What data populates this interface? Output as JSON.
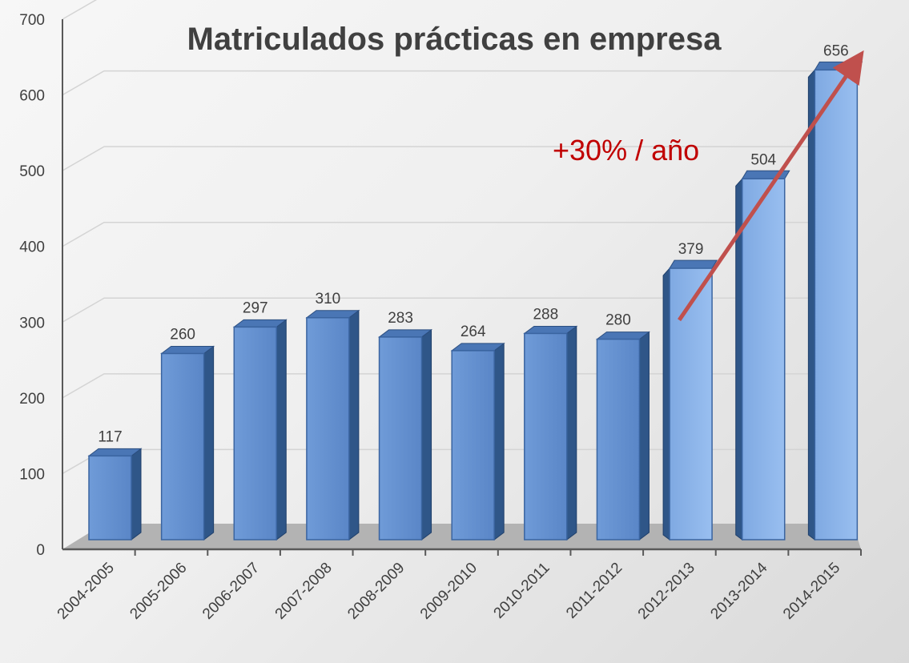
{
  "chart_data": {
    "type": "bar",
    "title": "Matriculados prácticas en empresa",
    "xlabel": "",
    "ylabel": "",
    "ylim": [
      0,
      700
    ],
    "yticks": [
      0,
      100,
      200,
      300,
      400,
      500,
      600,
      700
    ],
    "categories": [
      "2004-2005",
      "2005-2006",
      "2006-2007",
      "2007-2008",
      "2008-2009",
      "2009-2010",
      "2010-2011",
      "2011-2012",
      "2012-2013",
      "2013-2014",
      "2014-2015"
    ],
    "values": [
      117,
      260,
      297,
      310,
      283,
      264,
      288,
      280,
      379,
      504,
      656
    ],
    "data_labels": [
      "117",
      "260",
      "297",
      "310",
      "283",
      "264",
      "288",
      "280",
      "379",
      "504",
      "656"
    ],
    "annotation": {
      "text": "+30% / año",
      "arrow_from": {
        "category": "2012-2013",
        "value": 300
      },
      "arrow_to": {
        "category": "2014-2015",
        "value": 656
      }
    },
    "grid": true,
    "legend": "none",
    "colors": {
      "bar": "#5b8bd0",
      "bar_light": "#8db4ea",
      "bar_dark": "#2c4f80",
      "annotation": "#c00000",
      "arrow": "#c0504d",
      "text": "#404040"
    }
  }
}
